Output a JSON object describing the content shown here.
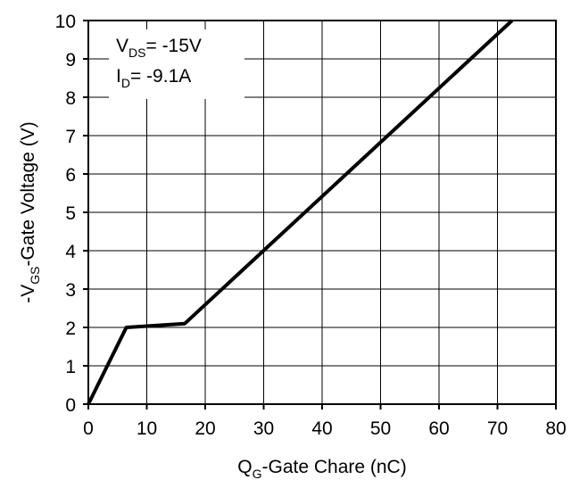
{
  "chart_data": {
    "type": "line",
    "xlabel": {
      "main": "Q",
      "sub": "G",
      "rest": "-Gate Chare (nC)"
    },
    "ylabel": {
      "pre": "-V",
      "sub": "GS",
      "rest": "-Gate Voltage (V)"
    },
    "xlim": [
      0,
      80
    ],
    "ylim": [
      0,
      10
    ],
    "x_ticks": [
      0,
      10,
      20,
      30,
      40,
      50,
      60,
      70,
      80
    ],
    "y_ticks": [
      0,
      1,
      2,
      3,
      4,
      5,
      6,
      7,
      8,
      9,
      10
    ],
    "x_tick_labels": [
      "0",
      "10",
      "20",
      "30",
      "40",
      "50",
      "60",
      "70",
      "80"
    ],
    "y_tick_labels": [
      "0",
      "1",
      "2",
      "3",
      "4",
      "5",
      "6",
      "7",
      "8",
      "9",
      "10"
    ],
    "grid": true,
    "annotations": [
      {
        "main": "V",
        "sub": "DS",
        "rest": "= -15V"
      },
      {
        "main": "I",
        "sub": "D",
        "rest": "= -9.1A"
      }
    ],
    "series": [
      {
        "x": [
          0,
          6.5,
          16.5,
          72.5
        ],
        "y": [
          0,
          2.0,
          2.1,
          10.0
        ]
      }
    ],
    "colors": {
      "line": "#000000",
      "grid": "#000000",
      "annotation_bg": "#ffffff"
    }
  }
}
